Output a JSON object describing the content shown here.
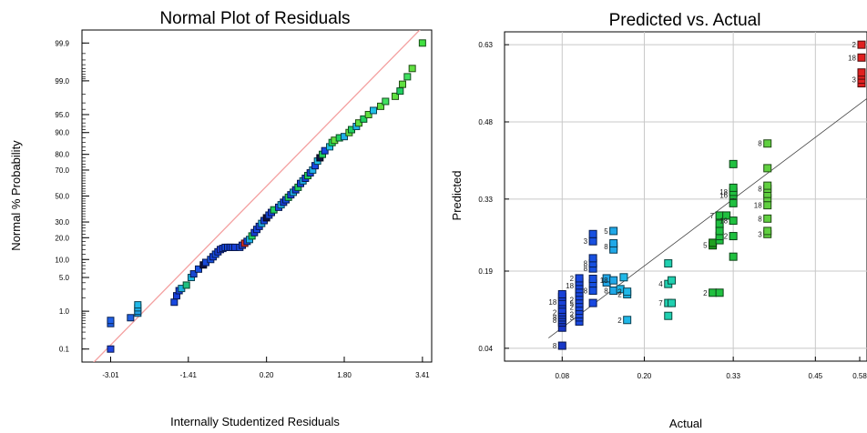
{
  "chart_data": [
    {
      "type": "scatter",
      "title": "Normal Plot of Residuals",
      "xlabel": "Internally Studentized Residuals",
      "ylabel": "Normal % Probability",
      "x_ticks": [
        "-3.01",
        "-1.41",
        "0.20",
        "1.80",
        "3.41"
      ],
      "x_tick_values": [
        -3.01,
        -1.41,
        0.2,
        1.8,
        3.41
      ],
      "y_ticks": [
        "0.1",
        "1.0",
        "5.0",
        "10.0",
        "20.0",
        "30.0",
        "50.0",
        "70.0",
        "80.0",
        "90.0",
        "95.0",
        "99.0",
        "99.9"
      ],
      "y_tick_values": [
        0.1,
        1.0,
        5.0,
        10.0,
        20.0,
        30.0,
        50.0,
        70.0,
        80.0,
        90.0,
        95.0,
        99.0,
        99.9
      ],
      "xlim": [
        -3.6,
        3.6
      ],
      "grid": false,
      "reference_line_color": "#f4a0a0",
      "points": [
        {
          "x": -3.01,
          "y": 0.1,
          "color": "#1f45e0"
        },
        {
          "x": -3.01,
          "y": 0.5,
          "color": "#1f60e8"
        },
        {
          "x": -3.01,
          "y": 0.6,
          "color": "#1f60e8"
        },
        {
          "x": -2.6,
          "y": 0.7,
          "color": "#2060e0"
        },
        {
          "x": -2.45,
          "y": 0.9,
          "color": "#20a0e8"
        },
        {
          "x": -2.45,
          "y": 1.0,
          "color": "#20a0e8"
        },
        {
          "x": -2.45,
          "y": 1.2,
          "color": "#20b0e8"
        },
        {
          "x": -2.45,
          "y": 1.4,
          "color": "#20b8e8"
        },
        {
          "x": -1.7,
          "y": 1.6,
          "color": "#1848e0"
        },
        {
          "x": -1.65,
          "y": 2.2,
          "color": "#1840d8"
        },
        {
          "x": -1.6,
          "y": 2.8,
          "color": "#1840d8"
        },
        {
          "x": -1.55,
          "y": 3.1,
          "color": "#20b0e0"
        },
        {
          "x": -1.45,
          "y": 3.6,
          "color": "#20c080"
        },
        {
          "x": -1.35,
          "y": 5.0,
          "color": "#20b8e0"
        },
        {
          "x": -1.3,
          "y": 5.8,
          "color": "#1848d0"
        },
        {
          "x": -1.2,
          "y": 7.0,
          "color": "#1850e0"
        },
        {
          "x": -1.1,
          "y": 8.2,
          "color": "#101040"
        },
        {
          "x": -1.05,
          "y": 9.0,
          "color": "#1848d8"
        },
        {
          "x": -0.95,
          "y": 10.0,
          "color": "#1850e0"
        },
        {
          "x": -0.9,
          "y": 11.0,
          "color": "#1840d8"
        },
        {
          "x": -0.85,
          "y": 12.0,
          "color": "#1850e0"
        },
        {
          "x": -0.8,
          "y": 13.0,
          "color": "#1840d8"
        },
        {
          "x": -0.75,
          "y": 14.0,
          "color": "#2040e0"
        },
        {
          "x": -0.7,
          "y": 14.5,
          "color": "#1840d8"
        },
        {
          "x": -0.65,
          "y": 15.0,
          "color": "#1848e0"
        },
        {
          "x": -0.6,
          "y": 15.0,
          "color": "#1848d8"
        },
        {
          "x": -0.55,
          "y": 15.0,
          "color": "#1840d8"
        },
        {
          "x": -0.5,
          "y": 15.0,
          "color": "#1848e0"
        },
        {
          "x": -0.45,
          "y": 15.0,
          "color": "#1840d8"
        },
        {
          "x": -0.35,
          "y": 15.0,
          "color": "#1848e0"
        },
        {
          "x": -0.3,
          "y": 16.0,
          "color": "#1840d8"
        },
        {
          "x": -0.25,
          "y": 17.0,
          "color": "#e03020"
        },
        {
          "x": -0.2,
          "y": 18.0,
          "color": "#1848e0"
        },
        {
          "x": -0.15,
          "y": 19.0,
          "color": "#20b0e8"
        },
        {
          "x": -0.1,
          "y": 21.0,
          "color": "#20d060"
        },
        {
          "x": -0.05,
          "y": 23.0,
          "color": "#1840d8"
        },
        {
          "x": 0.0,
          "y": 25.0,
          "color": "#1848e0"
        },
        {
          "x": 0.05,
          "y": 27.0,
          "color": "#1840d8"
        },
        {
          "x": 0.1,
          "y": 29.0,
          "color": "#20b0e8"
        },
        {
          "x": 0.15,
          "y": 31.0,
          "color": "#1848e0"
        },
        {
          "x": 0.2,
          "y": 33.0,
          "color": "#101040"
        },
        {
          "x": 0.25,
          "y": 35.0,
          "color": "#1848e0"
        },
        {
          "x": 0.3,
          "y": 37.0,
          "color": "#1840d8"
        },
        {
          "x": 0.35,
          "y": 39.0,
          "color": "#20d060"
        },
        {
          "x": 0.45,
          "y": 41.0,
          "color": "#1848e0"
        },
        {
          "x": 0.5,
          "y": 43.0,
          "color": "#20b0e8"
        },
        {
          "x": 0.55,
          "y": 45.0,
          "color": "#1840d8"
        },
        {
          "x": 0.6,
          "y": 47.0,
          "color": "#1848e0"
        },
        {
          "x": 0.65,
          "y": 49.0,
          "color": "#20d060"
        },
        {
          "x": 0.7,
          "y": 51.0,
          "color": "#1848e0"
        },
        {
          "x": 0.75,
          "y": 53.0,
          "color": "#20b0e8"
        },
        {
          "x": 0.8,
          "y": 55.0,
          "color": "#1840d8"
        },
        {
          "x": 0.85,
          "y": 57.0,
          "color": "#20d060"
        },
        {
          "x": 0.9,
          "y": 60.0,
          "color": "#1848e0"
        },
        {
          "x": 0.95,
          "y": 62.0,
          "color": "#20b0e8"
        },
        {
          "x": 1.0,
          "y": 64.0,
          "color": "#1840d8"
        },
        {
          "x": 1.05,
          "y": 66.0,
          "color": "#20d060"
        },
        {
          "x": 1.1,
          "y": 68.0,
          "color": "#1848e0"
        },
        {
          "x": 1.15,
          "y": 70.0,
          "color": "#20b0e8"
        },
        {
          "x": 1.2,
          "y": 73.0,
          "color": "#1848e0"
        },
        {
          "x": 1.25,
          "y": 76.0,
          "color": "#20c0e8"
        },
        {
          "x": 1.3,
          "y": 78.0,
          "color": "#101040"
        },
        {
          "x": 1.35,
          "y": 80.0,
          "color": "#20d060"
        },
        {
          "x": 1.4,
          "y": 82.0,
          "color": "#1848e0"
        },
        {
          "x": 1.5,
          "y": 84.0,
          "color": "#20c0e8"
        },
        {
          "x": 1.55,
          "y": 86.0,
          "color": "#20e060"
        },
        {
          "x": 1.6,
          "y": 87.0,
          "color": "#60e040"
        },
        {
          "x": 1.7,
          "y": 88.0,
          "color": "#20d060"
        },
        {
          "x": 1.8,
          "y": 88.5,
          "color": "#20b0e8"
        },
        {
          "x": 1.9,
          "y": 90.0,
          "color": "#60e040"
        },
        {
          "x": 1.95,
          "y": 91.0,
          "color": "#20d060"
        },
        {
          "x": 2.05,
          "y": 92.0,
          "color": "#20b0e8"
        },
        {
          "x": 2.1,
          "y": 93.0,
          "color": "#60e040"
        },
        {
          "x": 2.2,
          "y": 94.0,
          "color": "#20d060"
        },
        {
          "x": 2.3,
          "y": 95.0,
          "color": "#60e040"
        },
        {
          "x": 2.4,
          "y": 95.8,
          "color": "#20c0e8"
        },
        {
          "x": 2.55,
          "y": 96.5,
          "color": "#60e040"
        },
        {
          "x": 2.65,
          "y": 97.2,
          "color": "#40e060"
        },
        {
          "x": 2.85,
          "y": 97.8,
          "color": "#60e040"
        },
        {
          "x": 2.95,
          "y": 98.3,
          "color": "#20d060"
        },
        {
          "x": 3.0,
          "y": 98.8,
          "color": "#60e040"
        },
        {
          "x": 3.1,
          "y": 99.2,
          "color": "#40e060"
        },
        {
          "x": 3.2,
          "y": 99.5,
          "color": "#60e040"
        },
        {
          "x": 3.41,
          "y": 99.9,
          "color": "#40e040"
        }
      ]
    },
    {
      "type": "scatter",
      "title": "Predicted vs. Actual",
      "xlabel": "Actual",
      "ylabel": "Predicted",
      "x_ticks": [
        "0.08",
        "0.20",
        "0.33",
        "0.45",
        "0.58"
      ],
      "x_tick_values": [
        0.08,
        0.2,
        0.33,
        0.45,
        0.58
      ],
      "y_ticks": [
        "0.04",
        "0.19",
        "0.33",
        "0.48",
        "0.63"
      ],
      "y_tick_values": [
        0.04,
        0.19,
        0.33,
        0.48,
        0.63
      ],
      "xlim": [
        0.05,
        0.58
      ],
      "ylim": [
        0.015,
        0.655
      ],
      "grid": true,
      "diagonal_line": true,
      "points": [
        {
          "x": 0.08,
          "y": 0.045,
          "label": "8",
          "color": "#1838c8"
        },
        {
          "x": 0.08,
          "y": 0.08,
          "label": "",
          "color": "#1838c8"
        },
        {
          "x": 0.08,
          "y": 0.09,
          "label": "",
          "color": "#1838c8"
        },
        {
          "x": 0.08,
          "y": 0.095,
          "label": "8",
          "color": "#1840d0"
        },
        {
          "x": 0.08,
          "y": 0.1,
          "label": "8",
          "color": "#1840d0"
        },
        {
          "x": 0.08,
          "y": 0.105,
          "label": "",
          "color": "#1840d0"
        },
        {
          "x": 0.08,
          "y": 0.11,
          "label": "2",
          "color": "#1840d8"
        },
        {
          "x": 0.08,
          "y": 0.115,
          "label": "",
          "color": "#1840d8"
        },
        {
          "x": 0.08,
          "y": 0.125,
          "label": "",
          "color": "#1840d8"
        },
        {
          "x": 0.08,
          "y": 0.13,
          "label": "18",
          "color": "#1840d8"
        },
        {
          "x": 0.08,
          "y": 0.14,
          "label": "",
          "color": "#1840d8"
        },
        {
          "x": 0.08,
          "y": 0.145,
          "label": "",
          "color": "#1840d8"
        },
        {
          "x": 0.105,
          "y": 0.092,
          "label": "",
          "color": "#1848e0"
        },
        {
          "x": 0.105,
          "y": 0.1,
          "label": "3",
          "color": "#1848e0"
        },
        {
          "x": 0.105,
          "y": 0.106,
          "label": "2",
          "color": "#1848e0"
        },
        {
          "x": 0.105,
          "y": 0.113,
          "label": "",
          "color": "#1848e0"
        },
        {
          "x": 0.105,
          "y": 0.12,
          "label": "2",
          "color": "#1848e0"
        },
        {
          "x": 0.105,
          "y": 0.127,
          "label": "5",
          "color": "#1848e0"
        },
        {
          "x": 0.105,
          "y": 0.134,
          "label": "2",
          "color": "#1848e0"
        },
        {
          "x": 0.105,
          "y": 0.141,
          "label": "",
          "color": "#1848e0"
        },
        {
          "x": 0.105,
          "y": 0.148,
          "label": "",
          "color": "#1848e0"
        },
        {
          "x": 0.105,
          "y": 0.155,
          "label": "",
          "color": "#1848e0"
        },
        {
          "x": 0.105,
          "y": 0.162,
          "label": "18",
          "color": "#1848e0"
        },
        {
          "x": 0.105,
          "y": 0.169,
          "label": "",
          "color": "#1848e0"
        },
        {
          "x": 0.105,
          "y": 0.176,
          "label": "2",
          "color": "#1848e0"
        },
        {
          "x": 0.125,
          "y": 0.128,
          "label": "",
          "color": "#1848e0"
        },
        {
          "x": 0.125,
          "y": 0.152,
          "label": "8",
          "color": "#1850e0"
        },
        {
          "x": 0.125,
          "y": 0.166,
          "label": "",
          "color": "#1850e0"
        },
        {
          "x": 0.125,
          "y": 0.175,
          "label": "",
          "color": "#1850e0"
        },
        {
          "x": 0.125,
          "y": 0.195,
          "label": "8",
          "color": "#1850e0"
        },
        {
          "x": 0.125,
          "y": 0.205,
          "label": "8",
          "color": "#1850e0"
        },
        {
          "x": 0.125,
          "y": 0.215,
          "label": "",
          "color": "#1850e0"
        },
        {
          "x": 0.125,
          "y": 0.248,
          "label": "3",
          "color": "#1850e0"
        },
        {
          "x": 0.125,
          "y": 0.262,
          "label": "",
          "color": "#1850e0"
        },
        {
          "x": 0.145,
          "y": 0.168,
          "label": "",
          "color": "#20a8e8"
        },
        {
          "x": 0.145,
          "y": 0.176,
          "label": "",
          "color": "#20a8e8"
        },
        {
          "x": 0.155,
          "y": 0.152,
          "label": "8",
          "color": "#20a8e8"
        },
        {
          "x": 0.155,
          "y": 0.172,
          "label": "18",
          "color": "#20a8e8"
        },
        {
          "x": 0.155,
          "y": 0.238,
          "label": "8",
          "color": "#20a8e8"
        },
        {
          "x": 0.155,
          "y": 0.232,
          "label": "",
          "color": "#20a8e8"
        },
        {
          "x": 0.155,
          "y": 0.244,
          "label": "",
          "color": "#20a8e8"
        },
        {
          "x": 0.155,
          "y": 0.268,
          "label": "5",
          "color": "#20a8e8"
        },
        {
          "x": 0.165,
          "y": 0.155,
          "label": "",
          "color": "#20b8e8"
        },
        {
          "x": 0.17,
          "y": 0.178,
          "label": "",
          "color": "#20b8e8"
        },
        {
          "x": 0.175,
          "y": 0.145,
          "label": "2",
          "color": "#20b8e8"
        },
        {
          "x": 0.175,
          "y": 0.15,
          "label": "2",
          "color": "#20b8e8"
        },
        {
          "x": 0.175,
          "y": 0.095,
          "label": "2",
          "color": "#20b8e8"
        },
        {
          "x": 0.235,
          "y": 0.103,
          "label": "",
          "color": "#20d0b0"
        },
        {
          "x": 0.235,
          "y": 0.128,
          "label": "7",
          "color": "#20d0b0"
        },
        {
          "x": 0.24,
          "y": 0.128,
          "label": "",
          "color": "#20d0b0"
        },
        {
          "x": 0.235,
          "y": 0.165,
          "label": "4",
          "color": "#20d0b0"
        },
        {
          "x": 0.24,
          "y": 0.172,
          "label": "",
          "color": "#20d0b0"
        },
        {
          "x": 0.235,
          "y": 0.205,
          "label": "",
          "color": "#20d0b0"
        },
        {
          "x": 0.3,
          "y": 0.148,
          "label": "2",
          "color": "#20c040"
        },
        {
          "x": 0.31,
          "y": 0.148,
          "label": "",
          "color": "#20c040"
        },
        {
          "x": 0.3,
          "y": 0.24,
          "label": "5",
          "color": "#20a020"
        },
        {
          "x": 0.3,
          "y": 0.245,
          "label": "",
          "color": "#20a020"
        },
        {
          "x": 0.31,
          "y": 0.25,
          "label": "",
          "color": "#20c040"
        },
        {
          "x": 0.31,
          "y": 0.258,
          "label": "",
          "color": "#20c040"
        },
        {
          "x": 0.31,
          "y": 0.268,
          "label": "",
          "color": "#20c040"
        },
        {
          "x": 0.31,
          "y": 0.282,
          "label": "",
          "color": "#20c040"
        },
        {
          "x": 0.31,
          "y": 0.298,
          "label": "7",
          "color": "#20c040"
        },
        {
          "x": 0.32,
          "y": 0.298,
          "label": "",
          "color": "#20c040"
        },
        {
          "x": 0.33,
          "y": 0.218,
          "label": "",
          "color": "#20c040"
        },
        {
          "x": 0.33,
          "y": 0.258,
          "label": "2",
          "color": "#20c040"
        },
        {
          "x": 0.33,
          "y": 0.288,
          "label": "18",
          "color": "#20c040"
        },
        {
          "x": 0.33,
          "y": 0.322,
          "label": "",
          "color": "#20c040"
        },
        {
          "x": 0.33,
          "y": 0.338,
          "label": "16",
          "color": "#20c040"
        },
        {
          "x": 0.33,
          "y": 0.344,
          "label": "18",
          "color": "#20c040"
        },
        {
          "x": 0.33,
          "y": 0.352,
          "label": "",
          "color": "#20c040"
        },
        {
          "x": 0.33,
          "y": 0.398,
          "label": "",
          "color": "#20c040"
        },
        {
          "x": 0.38,
          "y": 0.262,
          "label": "3",
          "color": "#60d040"
        },
        {
          "x": 0.38,
          "y": 0.268,
          "label": "",
          "color": "#60d040"
        },
        {
          "x": 0.38,
          "y": 0.292,
          "label": "8",
          "color": "#60d040"
        },
        {
          "x": 0.38,
          "y": 0.318,
          "label": "18",
          "color": "#60d040"
        },
        {
          "x": 0.38,
          "y": 0.332,
          "label": "",
          "color": "#60d040"
        },
        {
          "x": 0.38,
          "y": 0.34,
          "label": "",
          "color": "#60d040"
        },
        {
          "x": 0.38,
          "y": 0.35,
          "label": "8",
          "color": "#60d040"
        },
        {
          "x": 0.38,
          "y": 0.356,
          "label": "",
          "color": "#60d040"
        },
        {
          "x": 0.38,
          "y": 0.39,
          "label": "",
          "color": "#60d040"
        },
        {
          "x": 0.38,
          "y": 0.438,
          "label": "8",
          "color": "#60d040"
        },
        {
          "x": 0.58,
          "y": 0.555,
          "label": "",
          "color": "#e02020"
        },
        {
          "x": 0.58,
          "y": 0.562,
          "label": "3",
          "color": "#e02020"
        },
        {
          "x": 0.58,
          "y": 0.57,
          "label": "",
          "color": "#e02020"
        },
        {
          "x": 0.58,
          "y": 0.576,
          "label": "",
          "color": "#e02020"
        },
        {
          "x": 0.58,
          "y": 0.605,
          "label": "18",
          "color": "#e02020"
        },
        {
          "x": 0.58,
          "y": 0.63,
          "label": "2",
          "color": "#e02020"
        }
      ]
    }
  ]
}
